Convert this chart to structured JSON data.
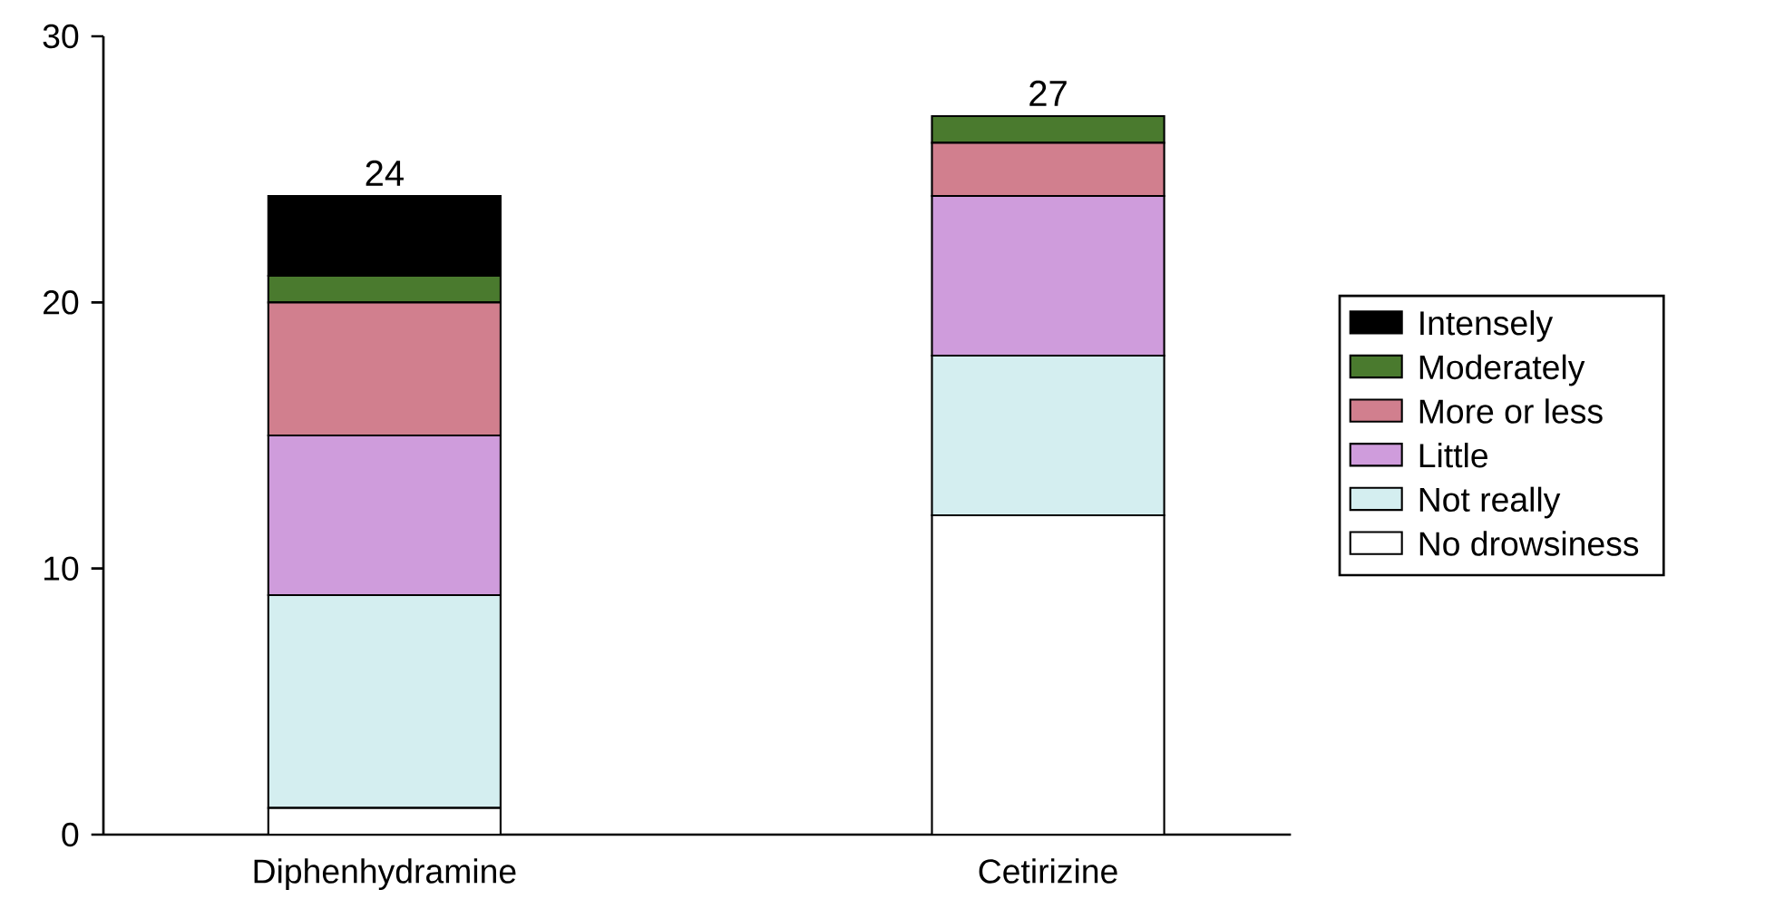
{
  "chart_data": {
    "type": "bar",
    "stacked": true,
    "categories": [
      "Diphenhydramine",
      "Cetirizine"
    ],
    "series": [
      {
        "name": "No drowsiness",
        "color": "#ffffff",
        "values": [
          1,
          12
        ]
      },
      {
        "name": "Not really",
        "color": "#d4eef0",
        "values": [
          8,
          6
        ]
      },
      {
        "name": "Little",
        "color": "#cf9cdc",
        "values": [
          6,
          6
        ]
      },
      {
        "name": "More or less",
        "color": "#d17f8e",
        "values": [
          5,
          2
        ]
      },
      {
        "name": "Moderately",
        "color": "#4a7a2e",
        "values": [
          1,
          1
        ]
      },
      {
        "name": "Intensely",
        "color": "#000000",
        "values": [
          3,
          0
        ]
      }
    ],
    "totals": [
      "24",
      "27"
    ],
    "ylim": [
      0,
      30
    ],
    "yticks": [
      0,
      10,
      20,
      30
    ],
    "grid": false,
    "legend": "right"
  }
}
